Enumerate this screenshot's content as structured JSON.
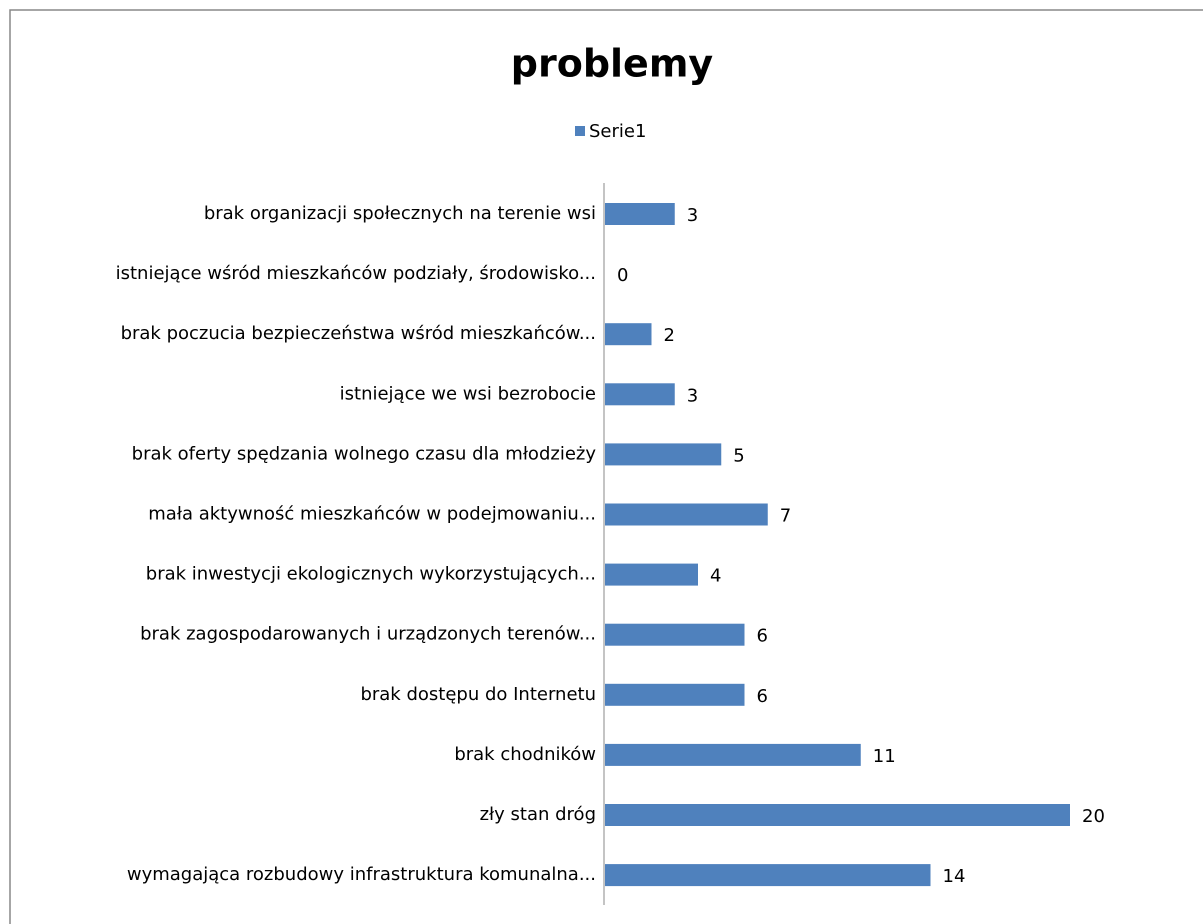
{
  "chart_data": {
    "type": "bar",
    "orientation": "horizontal",
    "title": "problemy",
    "categories": [
      "brak organizacji społecznych na terenie wsi",
      "istniejące wśród mieszkańców podziały, środowisko...",
      "brak poczucia bezpieczeństwa wśród mieszkańców...",
      "istniejące we wsi bezrobocie",
      "brak oferty spędzania wolnego czasu dla młodzieży",
      "mała aktywność mieszkańców w podejmowaniu...",
      "brak inwestycji ekologicznych wykorzystujących...",
      "brak zagospodarowanych i urządzonych terenów...",
      "brak dostępu do Internetu",
      "brak chodników",
      "zły stan dróg",
      "wymagająca rozbudowy infrastruktura komunalna..."
    ],
    "series": [
      {
        "name": "Serie1",
        "color": "#4f81bd",
        "values": [
          3,
          0,
          2,
          3,
          5,
          7,
          4,
          6,
          6,
          11,
          20,
          14
        ]
      }
    ],
    "legend": "top"
  }
}
